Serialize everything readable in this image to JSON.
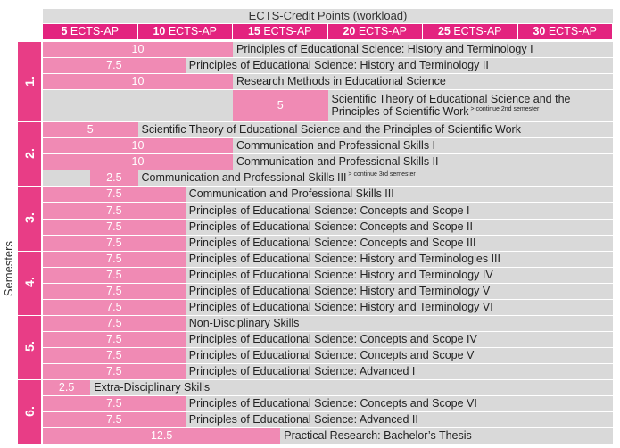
{
  "chart_data": {
    "type": "bar",
    "title": "ECTS-Credit Points (workload)",
    "ylabel": "Semesters",
    "x_ticks": [
      {
        "num": "5",
        "unit": "ECTS-AP"
      },
      {
        "num": "10",
        "unit": "ECTS-AP"
      },
      {
        "num": "15",
        "unit": "ECTS-AP"
      },
      {
        "num": "20",
        "unit": "ECTS-AP"
      },
      {
        "num": "25",
        "unit": "ECTS-AP"
      },
      {
        "num": "30",
        "unit": "ECTS-AP"
      }
    ],
    "xlim": [
      0,
      30
    ],
    "semesters": [
      "1.",
      "2.",
      "3.",
      "4.",
      "5.",
      "6."
    ],
    "rows": [
      {
        "semester": "1.",
        "start": 0,
        "value": 10,
        "label": "10",
        "course": "Principles of Educational Science: History and Terminology I"
      },
      {
        "semester": "1.",
        "start": 0,
        "value": 7.5,
        "label": "7.5",
        "course": "Principles of Educational Science: History and Terminology II"
      },
      {
        "semester": "1.",
        "start": 0,
        "value": 10,
        "label": "10",
        "course": "Research Methods in Educational Science"
      },
      {
        "semester": "1.",
        "start": 10,
        "value": 5,
        "label": "5",
        "course": "Scientific Theory of Educational Science and the Principles of Scientific Work",
        "note": "> continue 2nd semester",
        "tall": true
      },
      {
        "semester": "2.",
        "start": 0,
        "value": 5,
        "label": "5",
        "course": "Scientific Theory of Educational Science and the Principles of Scientific Work"
      },
      {
        "semester": "2.",
        "start": 0,
        "value": 10,
        "label": "10",
        "course": "Communication and Professional Skills I"
      },
      {
        "semester": "2.",
        "start": 0,
        "value": 10,
        "label": "10",
        "course": "Communication and Professional Skills II"
      },
      {
        "semester": "2.",
        "start": 2.5,
        "value": 2.5,
        "label": "2.5",
        "course": "Communication and Professional Skills III",
        "note": "> continue 3rd semester"
      },
      {
        "semester": "3.",
        "start": 0,
        "value": 7.5,
        "label": "7.5",
        "course": "Communication and Professional Skills III"
      },
      {
        "semester": "3.",
        "start": 0,
        "value": 7.5,
        "label": "7.5",
        "course": "Principles of Educational Science: Concepts and Scope I"
      },
      {
        "semester": "3.",
        "start": 0,
        "value": 7.5,
        "label": "7.5",
        "course": "Principles of Educational Science: Concepts and Scope II"
      },
      {
        "semester": "3.",
        "start": 0,
        "value": 7.5,
        "label": "7.5",
        "course": "Principles of Educational Science: Concepts and Scope III"
      },
      {
        "semester": "4.",
        "start": 0,
        "value": 7.5,
        "label": "7.5",
        "course": "Principles of Educational Science: History and Terminologies III"
      },
      {
        "semester": "4.",
        "start": 0,
        "value": 7.5,
        "label": "7.5",
        "course": "Principles of Educational Science: History and Terminology IV"
      },
      {
        "semester": "4.",
        "start": 0,
        "value": 7.5,
        "label": "7.5",
        "course": "Principles of Educational Science: History and Terminology V"
      },
      {
        "semester": "4.",
        "start": 0,
        "value": 7.5,
        "label": "7.5",
        "course": "Principles of Educational Science: History and Terminology VI"
      },
      {
        "semester": "5.",
        "start": 0,
        "value": 7.5,
        "label": "7.5",
        "course": "Non-Disciplinary Skills"
      },
      {
        "semester": "5.",
        "start": 0,
        "value": 7.5,
        "label": "7.5",
        "course": "Principles of Educational Science: Concepts and Scope IV"
      },
      {
        "semester": "5.",
        "start": 0,
        "value": 7.5,
        "label": "7.5",
        "course": "Principles of Educational Science: Concepts and Scope V"
      },
      {
        "semester": "5.",
        "start": 0,
        "value": 7.5,
        "label": "7.5",
        "course": "Principles of Educational Science: Advanced I"
      },
      {
        "semester": "6.",
        "start": 0,
        "value": 2.5,
        "label": "2.5",
        "course": "Extra-Disciplinary Skills"
      },
      {
        "semester": "6.",
        "start": 0,
        "value": 7.5,
        "label": "7.5",
        "course": "Principles of Educational Science: Concepts and Scope VI"
      },
      {
        "semester": "6.",
        "start": 0,
        "value": 7.5,
        "label": "7.5",
        "course": "Principles of Educational Science: Advanced II"
      },
      {
        "semester": "6.",
        "start": 0,
        "value": 12.5,
        "label": "12.5",
        "course": "Practical Research: Bachelor’s Thesis"
      }
    ],
    "colors": {
      "bar": "#f08ab4",
      "header": "#e3237f",
      "semester": "#e83d86",
      "row_bg": "#d9d9d9"
    }
  }
}
